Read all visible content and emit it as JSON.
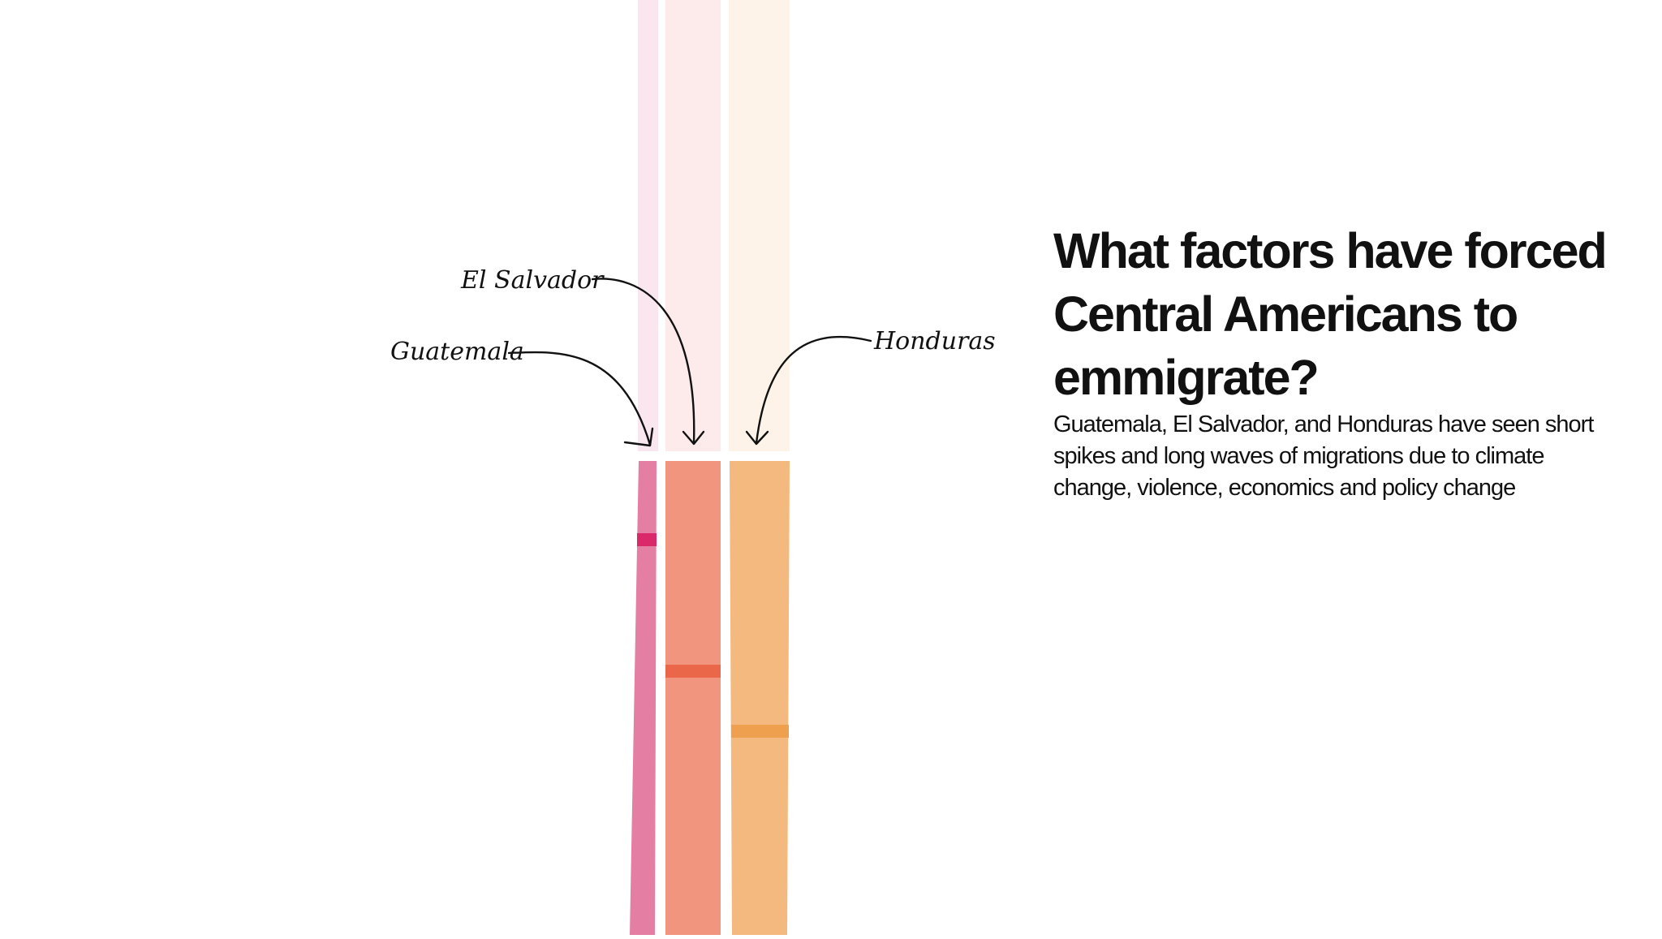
{
  "headline": {
    "title": "What factors have forced Central Americans to emmigrate?",
    "subtitle": "Guatemala, El Salvador, and Honduras have seen short spikes and long waves of migrations due to climate change, violence, economics and policy change"
  },
  "countries": [
    {
      "label": "Guatemala",
      "color": "#e57ea3",
      "light_color": "#f9e6ef",
      "accent_color": "#d9296b"
    },
    {
      "label": "El Salvador",
      "color": "#f2957e",
      "light_color": "#fdeaea",
      "accent_color": "#ea6749"
    },
    {
      "label": "Honduras",
      "color": "#f3b97e",
      "light_color": "#fdf3e8",
      "accent_color": "#efa04f"
    }
  ]
}
